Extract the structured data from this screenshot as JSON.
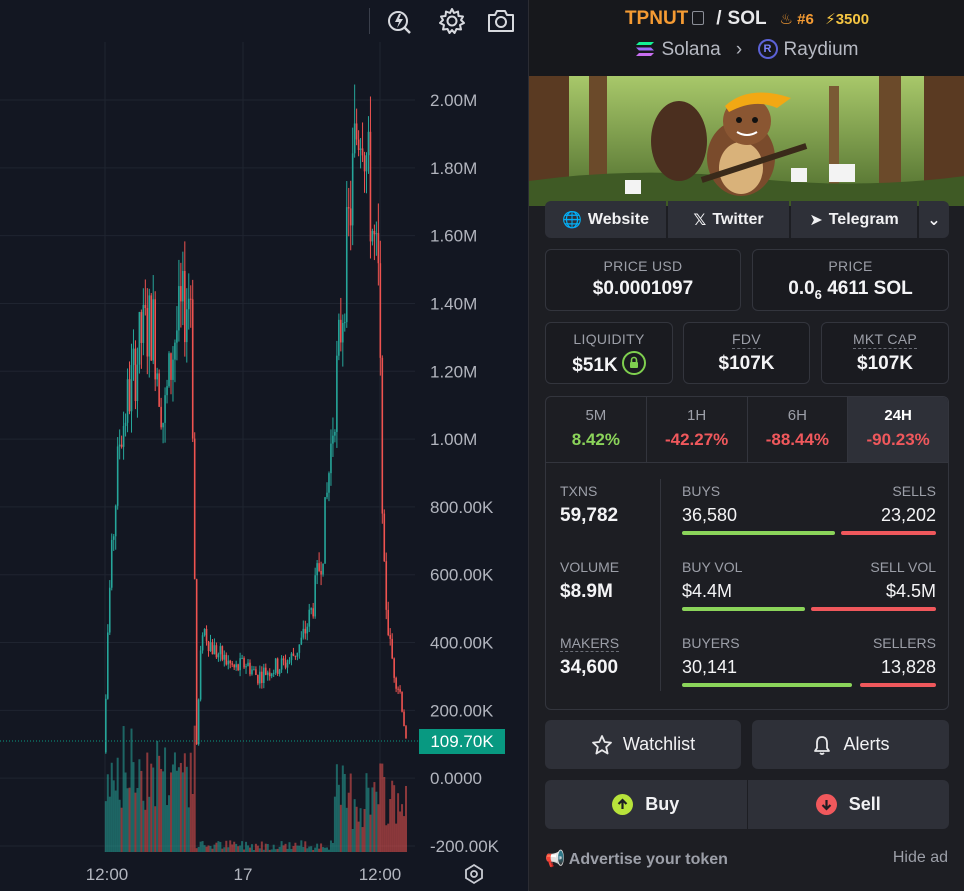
{
  "chart": {
    "y_axis_labels": [
      "2.00M",
      "1.80M",
      "1.60M",
      "1.40M",
      "1.20M",
      "1.00M",
      "800.00K",
      "600.00K",
      "400.00K",
      "200.00K",
      "0.0000",
      "-200.00K"
    ],
    "x_axis_labels": [
      "12:00",
      "17",
      "12:00"
    ],
    "current_value_tag": "109.70K",
    "toolbar": [
      "chart-alert-icon",
      "settings-gear-icon",
      "camera-icon"
    ],
    "colors": {
      "up": "#26a69a",
      "down": "#ef5350",
      "tag": "#089981"
    }
  },
  "chart_data": {
    "type": "candlestick",
    "y_range": [
      -200000,
      2100000
    ],
    "x_ticks": [
      "12:00",
      "17",
      "12:00"
    ],
    "last_value": 109700,
    "approx_close_path": [
      [
        0,
        0
      ],
      [
        2,
        0
      ],
      [
        3,
        500000
      ],
      [
        5,
        1000000
      ],
      [
        7,
        1150000
      ],
      [
        9,
        1300000
      ],
      [
        11,
        1350000
      ],
      [
        13,
        1050000
      ],
      [
        15,
        1300000
      ],
      [
        17,
        1400000
      ],
      [
        18,
        1450000
      ],
      [
        19,
        100000
      ],
      [
        20,
        450000
      ],
      [
        22,
        380000
      ],
      [
        24,
        350000
      ],
      [
        26,
        320000
      ],
      [
        28,
        340000
      ],
      [
        30,
        300000
      ],
      [
        32,
        320000
      ],
      [
        34,
        330000
      ],
      [
        36,
        350000
      ],
      [
        38,
        400000
      ],
      [
        40,
        500000
      ],
      [
        42,
        700000
      ],
      [
        44,
        1100000
      ],
      [
        46,
        1500000
      ],
      [
        48,
        1900000
      ],
      [
        49,
        2000000
      ],
      [
        50,
        1800000
      ],
      [
        51,
        1600000
      ],
      [
        52,
        1450000
      ],
      [
        53,
        600000
      ],
      [
        54,
        400000
      ],
      [
        55,
        300000
      ],
      [
        56,
        250000
      ],
      [
        57,
        109700
      ]
    ]
  },
  "header": {
    "base_symbol": "TPNUT",
    "quote_symbol": "SOL",
    "rank": "#6",
    "boosts": "3500",
    "chain": "Solana",
    "dex": "Raydium"
  },
  "links": {
    "website": "Website",
    "twitter": "Twitter",
    "telegram": "Telegram"
  },
  "prices": {
    "usd_label": "PRICE USD",
    "usd_value": "$0.0001097",
    "native_label": "PRICE",
    "native_prefix": "0.0",
    "native_sub": "6",
    "native_rest": "4611 SOL"
  },
  "metrics": {
    "liquidity_label": "LIQUIDITY",
    "liquidity_value": "$51K",
    "fdv_label": "FDV",
    "fdv_value": "$107K",
    "mktcap_label": "MKT CAP",
    "mktcap_value": "$107K"
  },
  "timeframes": [
    {
      "label": "5M",
      "value": "8.42%",
      "dir": "pos"
    },
    {
      "label": "1H",
      "value": "-42.27%",
      "dir": "neg"
    },
    {
      "label": "6H",
      "value": "-88.44%",
      "dir": "neg"
    },
    {
      "label": "24H",
      "value": "-90.23%",
      "dir": "neg",
      "active": true
    }
  ],
  "stats": {
    "txns_label": "TXNS",
    "txns": "59,782",
    "buys_label": "BUYS",
    "buys": "36,580",
    "sells_label": "SELLS",
    "sells": "23,202",
    "volume_label": "VOLUME",
    "volume": "$8.9M",
    "buy_vol_label": "BUY VOL",
    "buy_vol": "$4.4M",
    "sell_vol_label": "SELL VOL",
    "sell_vol": "$4.5M",
    "makers_label": "MAKERS",
    "makers": "34,600",
    "buyers_label": "BUYERS",
    "buyers": "30,141",
    "sellers_label": "SELLERS",
    "sellers": "13,828",
    "buy_share": 0.61,
    "buy_vol_share": 0.49,
    "buyer_share": 0.69
  },
  "actions": {
    "watchlist": "Watchlist",
    "alerts": "Alerts",
    "buy": "Buy",
    "sell": "Sell"
  },
  "footer": {
    "advertise": "Advertise your token",
    "hide_ad": "Hide ad"
  }
}
